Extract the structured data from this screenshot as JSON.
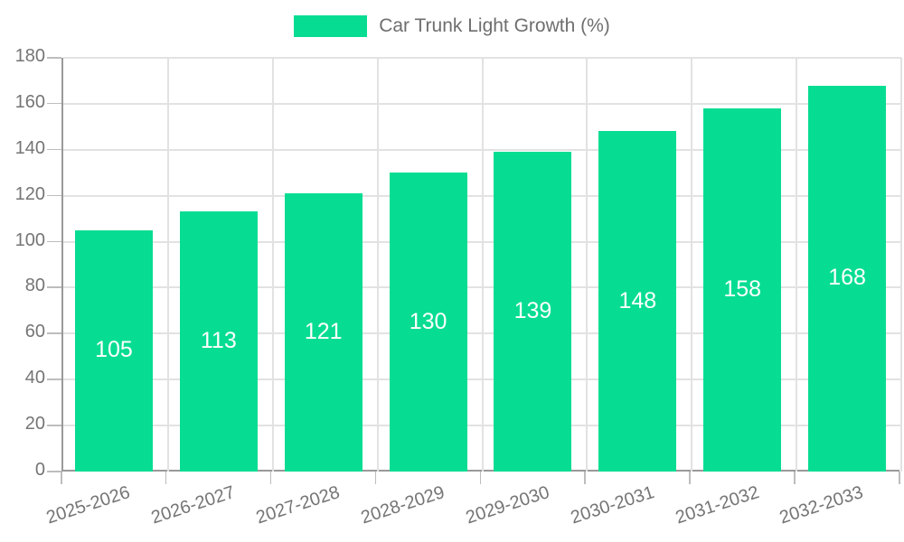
{
  "chart_data": {
    "type": "bar",
    "title": "Car Trunk Light Growth (%)",
    "categories": [
      "2025-2026",
      "2026-2027",
      "2027-2028",
      "2028-2029",
      "2029-2030",
      "2030-2031",
      "2031-2032",
      "2032-2033"
    ],
    "values": [
      105,
      113,
      121,
      130,
      139,
      148,
      158,
      168
    ],
    "value_labels": [
      "105",
      "113",
      "121",
      "130",
      "139",
      "148",
      "158",
      "168"
    ],
    "yticks": [
      0,
      20,
      40,
      60,
      80,
      100,
      120,
      140,
      160,
      180
    ],
    "ylim": [
      0,
      180
    ],
    "xlabel": "",
    "ylabel": "",
    "grid": true,
    "legend_position": "top-center",
    "colors": {
      "bar": "#07DD92",
      "value_label": "#ffffff",
      "axis": "#999999",
      "grid": "#e2e2e2",
      "tick": "#bdbdbd",
      "tick_label": "#757575",
      "legend_text": "#6e6e6e",
      "background": "#ffffff"
    }
  }
}
